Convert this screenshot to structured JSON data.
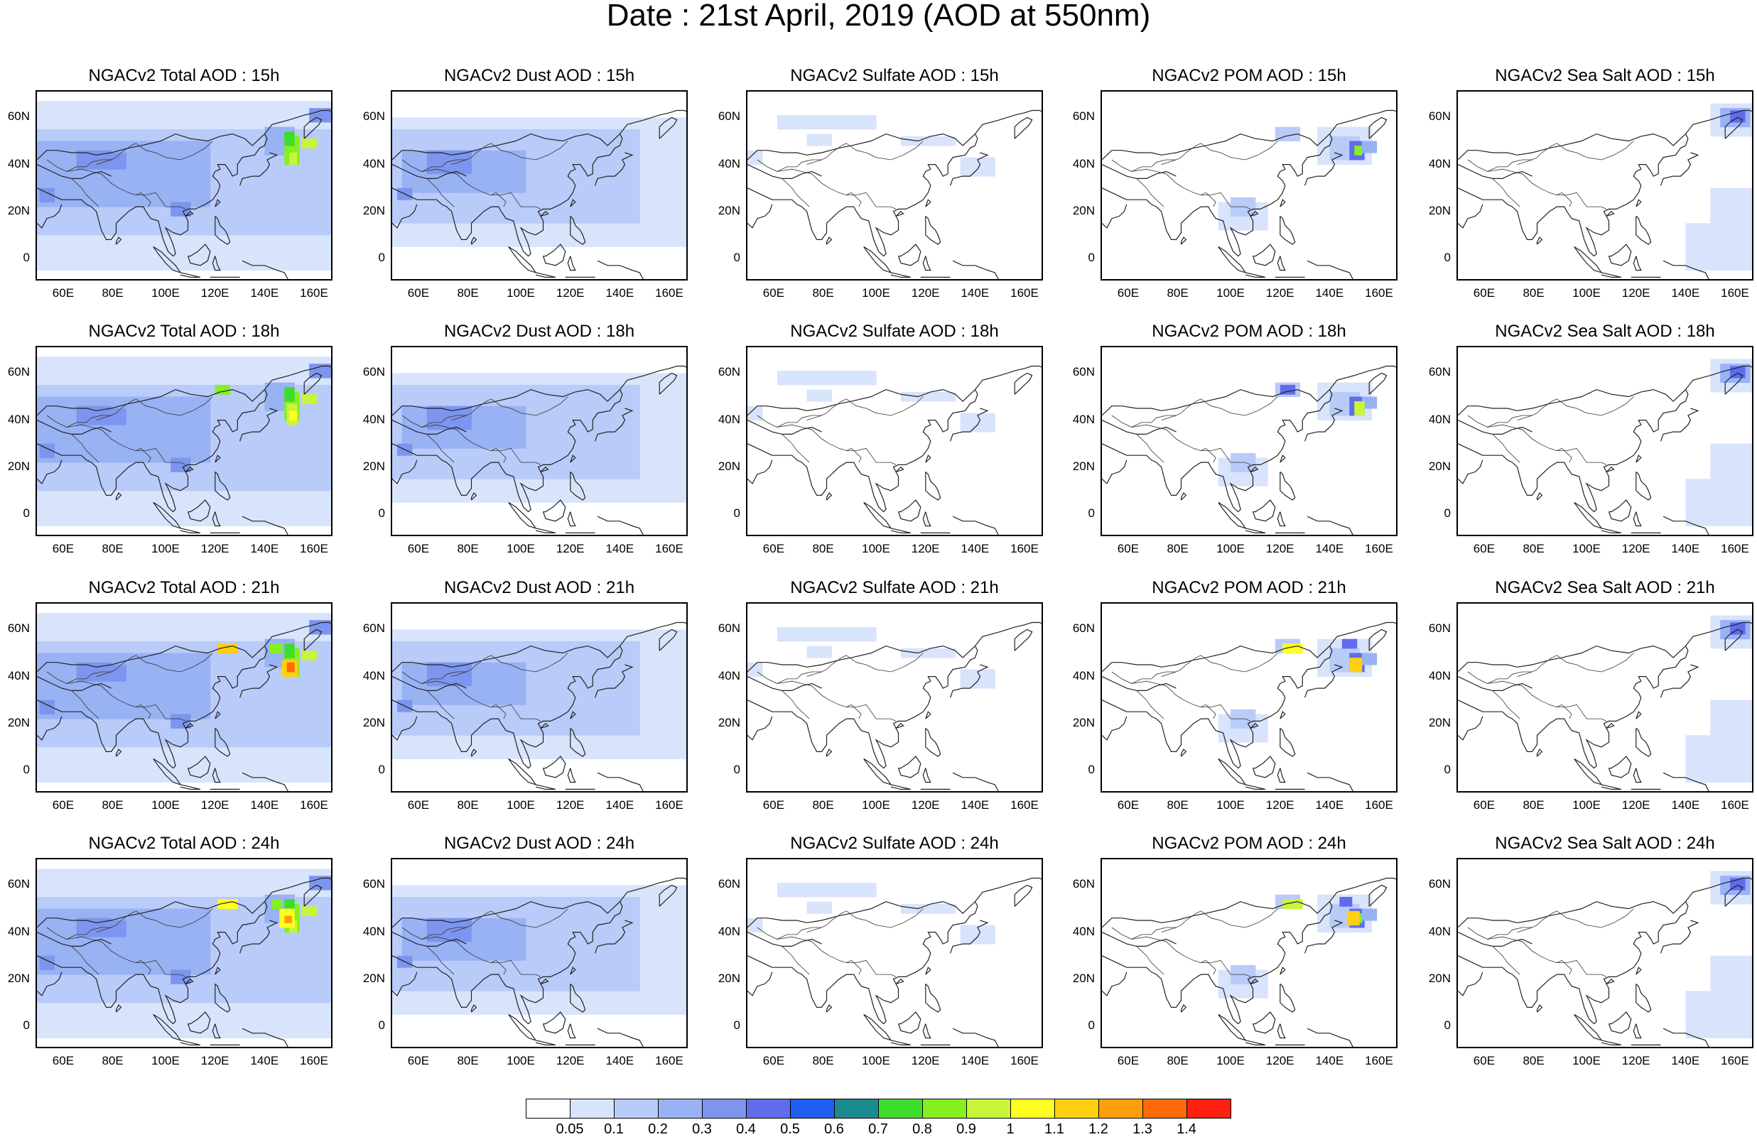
{
  "title": "Date : 21st April, 2019 (AOD at 550nm)",
  "panels": [
    [
      "NGACv2 Total AOD : 15h",
      "NGACv2 Dust AOD : 15h",
      "NGACv2 Sulfate AOD : 15h",
      "NGACv2 POM AOD : 15h",
      "NGACv2 Sea Salt AOD : 15h"
    ],
    [
      "NGACv2 Total AOD : 18h",
      "NGACv2 Dust AOD : 18h",
      "NGACv2 Sulfate AOD : 18h",
      "NGACv2 POM AOD : 18h",
      "NGACv2 Sea Salt AOD : 18h"
    ],
    [
      "NGACv2 Total AOD : 21h",
      "NGACv2 Dust AOD : 21h",
      "NGACv2 Sulfate AOD : 21h",
      "NGACv2 POM AOD : 21h",
      "NGACv2 Sea Salt AOD : 21h"
    ],
    [
      "NGACv2 Total AOD : 24h",
      "NGACv2 Dust AOD : 24h",
      "NGACv2 Sulfate AOD : 24h",
      "NGACv2 POM AOD : 24h",
      "NGACv2 Sea Salt  AOD : 24h"
    ]
  ],
  "axes": {
    "lon_labels": [
      "60E",
      "80E",
      "100E",
      "120E",
      "140E",
      "160E"
    ],
    "lat_labels": [
      "60N",
      "40N",
      "20N",
      "0"
    ]
  },
  "colorbar": {
    "labels": [
      "0.05",
      "0.1",
      "0.2",
      "0.3",
      "0.4",
      "0.5",
      "0.6",
      "0.7",
      "0.8",
      "0.9",
      "1",
      "1.1",
      "1.2",
      "1.3",
      "1.4"
    ],
    "colors": [
      "#ffffff",
      "#d8e4fb",
      "#b9cbf8",
      "#98b2f4",
      "#7d95ef",
      "#5f6cec",
      "#1f5ef0",
      "#1a8c90",
      "#3edd2c",
      "#86ef20",
      "#c8f53a",
      "#ffff22",
      "#ffcf12",
      "#ff9e0a",
      "#ff6a08",
      "#ff2010"
    ]
  }
}
